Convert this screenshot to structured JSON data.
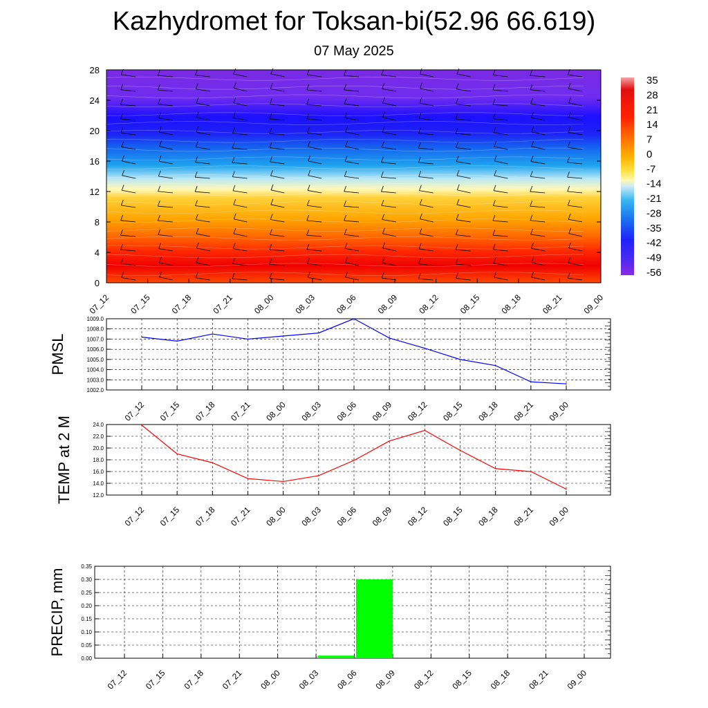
{
  "title": "Kazhydromet for Toksan-bi(52.96 66.619)",
  "subtitle": "07 May 2025",
  "time_labels": [
    "07_12",
    "07_15",
    "07_18",
    "07_21",
    "08_00",
    "08_03",
    "08_06",
    "08_09",
    "08_12",
    "08_15",
    "08_18",
    "08_21",
    "09_00"
  ],
  "colors": {
    "pmsl_line": "#0000ff",
    "temp_line": "#ff0000",
    "precip_bar": "#00ff00",
    "grid": "#000000",
    "wind_barb": "#000000"
  },
  "chart_data": [
    {
      "type": "heatmap",
      "name": "cross-section",
      "xlabel": "",
      "ylabel": "",
      "x": [
        "07_12",
        "07_15",
        "07_18",
        "07_21",
        "08_00",
        "08_03",
        "08_06",
        "08_09",
        "08_12",
        "08_15",
        "08_18",
        "08_21",
        "09_00"
      ],
      "yticks": [
        0,
        4,
        8,
        12,
        16,
        20,
        24,
        28
      ],
      "ylim": [
        0,
        28
      ],
      "colorbar_labels": [
        "35",
        "28",
        "21",
        "14",
        "7",
        "0",
        "-7",
        "-14",
        "-21",
        "-28",
        "-35",
        "-42",
        "-49",
        "-56"
      ],
      "colorbar_range": [
        -63,
        42
      ],
      "wind_barbs": true
    },
    {
      "type": "line",
      "name": "pmsl",
      "ylabel": "PMSL",
      "x": [
        "07_12",
        "07_15",
        "07_18",
        "07_21",
        "08_00",
        "08_03",
        "08_06",
        "08_09",
        "08_12",
        "08_15",
        "08_18",
        "08_21",
        "09_00"
      ],
      "values": [
        1007.2,
        1006.8,
        1007.5,
        1007.0,
        1007.3,
        1007.6,
        1009.0,
        1007.1,
        1006.1,
        1005.0,
        1004.4,
        1002.8,
        1002.6
      ],
      "yticks": [
        "1002.0",
        "1003.0",
        "1004.0",
        "1005.0",
        "1006.0",
        "1007.0",
        "1008.0",
        "1009.0"
      ],
      "ylim": [
        1002.0,
        1009.0
      ],
      "grid": true
    },
    {
      "type": "line",
      "name": "temp",
      "ylabel": "TEMP at 2 M",
      "x": [
        "07_12",
        "07_15",
        "07_18",
        "07_21",
        "08_00",
        "08_03",
        "08_06",
        "08_09",
        "08_12",
        "08_15",
        "08_18",
        "08_21",
        "09_00"
      ],
      "values": [
        23.9,
        19.0,
        17.5,
        14.8,
        14.3,
        15.3,
        17.9,
        21.2,
        23.0,
        19.6,
        16.5,
        16.0,
        13.0
      ],
      "yticks": [
        "12.0",
        "14.0",
        "16.0",
        "18.0",
        "20.0",
        "22.0",
        "24.0"
      ],
      "ylim": [
        12.0,
        24.0
      ],
      "grid": true
    },
    {
      "type": "bar",
      "name": "precip",
      "ylabel": "PRECIP, mm",
      "categories": [
        "07_12",
        "07_15",
        "07_18",
        "07_21",
        "08_00",
        "08_03",
        "08_06",
        "08_09",
        "08_12",
        "08_15",
        "08_18",
        "08_21",
        "09_00"
      ],
      "values": [
        0,
        0,
        0,
        0,
        0,
        0,
        0.01,
        0.3,
        0,
        0,
        0,
        0,
        0
      ],
      "yticks": [
        "0.00",
        "0.05",
        "0.10",
        "0.15",
        "0.20",
        "0.25",
        "0.30",
        "0.35"
      ],
      "ylim": [
        0,
        0.35
      ],
      "grid": true
    }
  ]
}
